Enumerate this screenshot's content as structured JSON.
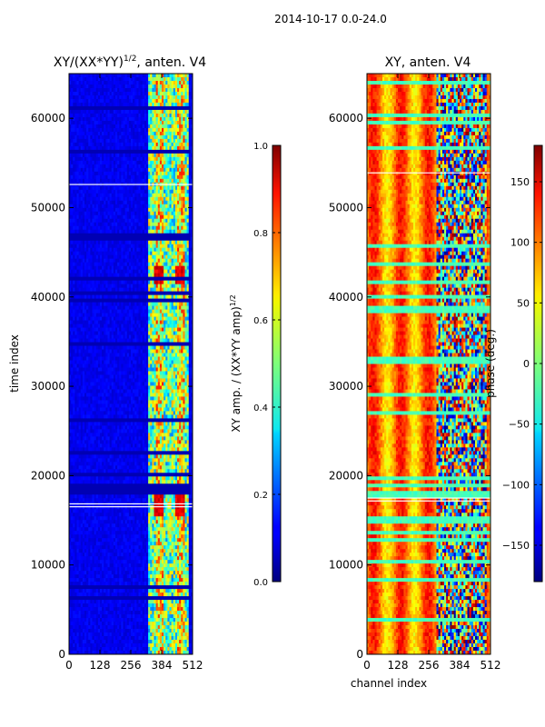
{
  "figure": {
    "suptitle": "2014-10-17 0.0-24.0"
  },
  "chart_data": [
    {
      "type": "heatmap",
      "title": "XY/(XX*YY)",
      "title_sup": "1/2",
      "title_suffix": ", anten. V4",
      "xlabel": "",
      "ylabel": "time index",
      "xlim": [
        0,
        512
      ],
      "ylim": [
        0,
        65000
      ],
      "xticks": [
        0,
        128,
        256,
        384,
        512
      ],
      "yticks": [
        0,
        10000,
        20000,
        30000,
        40000,
        50000,
        60000
      ],
      "colormap": "jet",
      "colorbar": {
        "label": "XY amp. / (XX*YY amp)",
        "label_sup": "1/2",
        "range": [
          0.0,
          1.0
        ],
        "ticks": [
          "0.0",
          "0.2",
          "0.4",
          "0.6",
          "0.8",
          "1.0"
        ]
      },
      "description": "Normalized cross-correlation amplitude; mostly low (~0.1) with high-amplitude striped band at channels ~330-500."
    },
    {
      "type": "heatmap",
      "title": "XY, anten. V4",
      "xlabel": "channel index",
      "ylabel": "",
      "xlim": [
        0,
        512
      ],
      "ylim": [
        0,
        65000
      ],
      "xticks": [
        0,
        128,
        256,
        384,
        512
      ],
      "yticks": [
        0,
        10000,
        20000,
        30000,
        40000,
        50000,
        60000
      ],
      "colormap": "jet",
      "colorbar": {
        "label": "phase (deg.)",
        "range": [
          -180,
          180
        ],
        "ticks": [
          "150",
          "100",
          "50",
          "0",
          "−50",
          "−100",
          "−150"
        ]
      },
      "description": "Cross-correlation phase; mostly ~+60 to +150 deg with vertical banding, noisy mixed phases at channels ~290-500."
    }
  ]
}
